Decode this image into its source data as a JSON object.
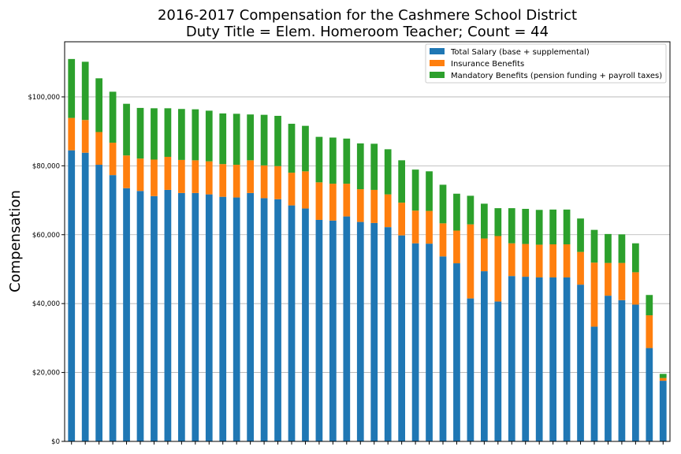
{
  "chart_data": {
    "type": "bar",
    "stacked": true,
    "title": [
      "2016-2017 Compensation for the Cashmere School District",
      "Duty Title = Elem. Homeroom Teacher; Count = 44"
    ],
    "xlabel": "",
    "ylabel": "Compensation",
    "ylim": [
      0,
      116000
    ],
    "yticks": [
      0,
      20000,
      40000,
      60000,
      80000,
      100000
    ],
    "ytick_labels": [
      "$0",
      "$20,000",
      "$40,000",
      "$60,000",
      "$80,000",
      "$100,000"
    ],
    "grid": "horizontal",
    "legend_position": "top-right",
    "series": [
      {
        "name": "Total Salary (base + supplemental)",
        "color": "#1f77b4",
        "values": [
          84500,
          83800,
          80300,
          77300,
          73500,
          72700,
          71200,
          73000,
          72100,
          72100,
          71700,
          71000,
          70800,
          72100,
          70600,
          70300,
          68500,
          67600,
          64300,
          64100,
          65300,
          63700,
          63400,
          62200,
          59800,
          57500,
          57400,
          53700,
          51700,
          41500,
          49400,
          40600,
          48000,
          47800,
          47600,
          47600,
          47600,
          45500,
          33300,
          42300,
          41000,
          39700,
          27100,
          17600
        ]
      },
      {
        "name": "Insurance Benefits",
        "color": "#ff7f0e",
        "values": [
          9400,
          9500,
          9500,
          9400,
          9500,
          9400,
          10600,
          9600,
          9600,
          9500,
          9600,
          9500,
          9500,
          9500,
          9500,
          9600,
          9500,
          10800,
          10900,
          10700,
          9500,
          9500,
          9600,
          9500,
          9500,
          9500,
          9500,
          9600,
          9500,
          21500,
          9500,
          19000,
          9500,
          9500,
          9500,
          9600,
          9600,
          9500,
          18600,
          9500,
          10800,
          9400,
          9500,
          800
        ]
      },
      {
        "name": "Mandatory Benefits (pension funding + payroll taxes)",
        "color": "#2ca02c",
        "values": [
          17100,
          16900,
          15600,
          14800,
          15000,
          14700,
          14900,
          14100,
          14800,
          14800,
          14700,
          14700,
          14800,
          13300,
          14700,
          14600,
          14200,
          13200,
          13200,
          13400,
          13100,
          13300,
          13400,
          13100,
          12300,
          11900,
          11500,
          11200,
          10700,
          8300,
          10100,
          8100,
          10200,
          10200,
          10100,
          10100,
          10100,
          9700,
          9500,
          8400,
          8300,
          8400,
          5900,
          1200
        ]
      }
    ]
  }
}
